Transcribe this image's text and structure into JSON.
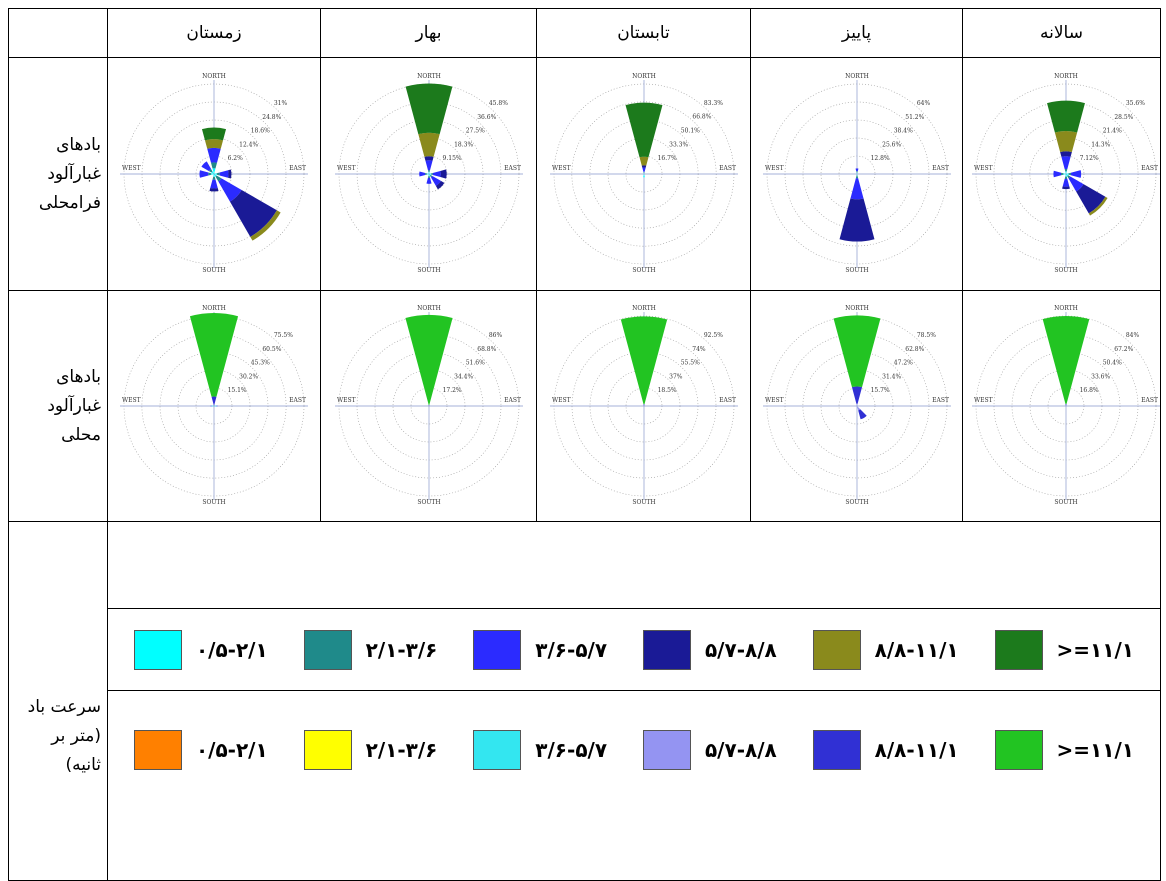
{
  "header": {
    "columns": [
      "زمستان",
      "بهار",
      "تابستان",
      "پاییز",
      "سالانه"
    ]
  },
  "directions": {
    "north": "NORTH",
    "south": "SOUTH",
    "east": "EAST",
    "west": "WEST"
  },
  "rows": [
    {
      "label": "بادهای غبارآلود فرامحلی",
      "roses": [
        {
          "rings": [
            {
              "value": 6.2,
              "label": "6.2%"
            },
            {
              "value": 12.4,
              "label": "12.4%"
            },
            {
              "value": 18.6,
              "label": "18.6%"
            },
            {
              "value": 24.8,
              "label": "24.8%"
            },
            {
              "value": 31,
              "label": "31%"
            }
          ],
          "petals": [
            {
              "direction": 0,
              "segments": [
                2,
                2,
                5,
                0,
                3,
                4
              ]
            },
            {
              "direction": 135,
              "segments": [
                1,
                2,
                8,
                14,
                1.5,
                0
              ]
            },
            {
              "direction": 90,
              "segments": [
                1,
                1,
                3,
                1,
                0,
                0
              ]
            },
            {
              "direction": 180,
              "segments": [
                1,
                1,
                3,
                1,
                0,
                0
              ]
            },
            {
              "direction": 270,
              "segments": [
                1,
                1,
                3,
                0,
                0,
                0
              ]
            },
            {
              "direction": 315,
              "segments": [
                1,
                1,
                3,
                0,
                0,
                0
              ]
            }
          ]
        },
        {
          "rings": [
            {
              "value": 9.15,
              "label": "9.15%"
            },
            {
              "value": 18.3,
              "label": "18.3%"
            },
            {
              "value": 27.5,
              "label": "27.5%"
            },
            {
              "value": 36.6,
              "label": "36.6%"
            },
            {
              "value": 45.8,
              "label": "45.8%"
            }
          ],
          "petals": [
            {
              "direction": 0,
              "segments": [
                1,
                1,
                5,
                2,
                12,
                25
              ]
            },
            {
              "direction": 90,
              "segments": [
                1,
                1,
                4,
                3,
                0,
                0
              ]
            },
            {
              "direction": 135,
              "segments": [
                1,
                1,
                5,
                2,
                0,
                0
              ]
            },
            {
              "direction": 180,
              "segments": [
                1,
                1,
                3,
                0,
                0,
                0
              ]
            },
            {
              "direction": 270,
              "segments": [
                1,
                1,
                3,
                0,
                0,
                0
              ]
            }
          ]
        },
        {
          "rings": [
            {
              "value": 16.7,
              "label": "16.7%"
            },
            {
              "value": 33.3,
              "label": "33.3%"
            },
            {
              "value": 50.1,
              "label": "50.1%"
            },
            {
              "value": 66.8,
              "label": "66.8%"
            },
            {
              "value": 83.3,
              "label": "83.3%"
            }
          ],
          "petals": [
            {
              "direction": 0,
              "segments": [
                1,
                1,
                4,
                2,
                8,
                50
              ]
            },
            {
              "direction": 180,
              "segments": [
                3,
                0,
                0,
                0,
                0,
                0
              ]
            }
          ]
        },
        {
          "rings": [
            {
              "value": 12.8,
              "label": "12.8%"
            },
            {
              "value": 25.6,
              "label": "25.6%"
            },
            {
              "value": 38.4,
              "label": "38.4%"
            },
            {
              "value": 51.2,
              "label": "51.2%"
            },
            {
              "value": 64,
              "label": "64%"
            }
          ],
          "petals": [
            {
              "direction": 180,
              "segments": [
                1,
                2,
                15,
                30,
                0,
                0
              ]
            },
            {
              "direction": 0,
              "segments": [
                1,
                1,
                2,
                0,
                0,
                0
              ]
            }
          ]
        },
        {
          "rings": [
            {
              "value": 7.12,
              "label": "7.12%"
            },
            {
              "value": 14.3,
              "label": "14.3%"
            },
            {
              "value": 21.4,
              "label": "21.4%"
            },
            {
              "value": 28.5,
              "label": "28.5%"
            },
            {
              "value": 35.6,
              "label": "35.6%"
            }
          ],
          "petals": [
            {
              "direction": 0,
              "segments": [
                1,
                1,
                5,
                2,
                8,
                12
              ]
            },
            {
              "direction": 135,
              "segments": [
                1,
                1,
                6,
                10,
                1,
                0
              ]
            },
            {
              "direction": 90,
              "segments": [
                1,
                1,
                4,
                0,
                0,
                0
              ]
            },
            {
              "direction": 270,
              "segments": [
                1,
                1,
                3,
                0,
                0,
                0
              ]
            },
            {
              "direction": 180,
              "segments": [
                1,
                1,
                3,
                1,
                0,
                0
              ]
            }
          ]
        }
      ]
    },
    {
      "label": "بادهای غبارآلود محلی",
      "roses": [
        {
          "rings": [
            {
              "value": 15.1,
              "label": "15.1%"
            },
            {
              "value": 30.2,
              "label": "30.2%"
            },
            {
              "value": 45.3,
              "label": "45.3%"
            },
            {
              "value": 60.5,
              "label": "60.5%"
            },
            {
              "value": 75.5,
              "label": "75.5%"
            }
          ],
          "petals": [
            {
              "direction": 0,
              "segments": [
                0,
                0,
                0,
                0,
                8,
                70
              ]
            },
            {
              "direction": 90,
              "segments": [
                0,
                0,
                2,
                1,
                0,
                0
              ]
            },
            {
              "direction": 270,
              "segments": [
                0,
                0,
                2,
                1,
                0,
                0
              ]
            }
          ]
        },
        {
          "rings": [
            {
              "value": 17.2,
              "label": "17.2%"
            },
            {
              "value": 34.4,
              "label": "34.4%"
            },
            {
              "value": 51.6,
              "label": "51.6%"
            },
            {
              "value": 68.8,
              "label": "68.8%"
            },
            {
              "value": 86,
              "label": "86%"
            }
          ],
          "petals": [
            {
              "direction": 0,
              "segments": [
                0,
                0,
                0,
                0,
                1,
                86
              ]
            }
          ]
        },
        {
          "rings": [
            {
              "value": 18.5,
              "label": "18.5%"
            },
            {
              "value": 37,
              "label": "37%"
            },
            {
              "value": 55.5,
              "label": "55.5%"
            },
            {
              "value": 74,
              "label": "74%"
            },
            {
              "value": 92.5,
              "label": "92.5%"
            }
          ],
          "petals": [
            {
              "direction": 0,
              "segments": [
                0,
                0,
                0,
                0,
                2,
                90
              ]
            }
          ]
        },
        {
          "rings": [
            {
              "value": 15.7,
              "label": "15.7%"
            },
            {
              "value": 31.4,
              "label": "31.4%"
            },
            {
              "value": 47.2,
              "label": "47.2%"
            },
            {
              "value": 62.8,
              "label": "62.8%"
            },
            {
              "value": 78.5,
              "label": "78.5%"
            }
          ],
          "petals": [
            {
              "direction": 0,
              "segments": [
                0,
                0,
                0,
                2,
                15,
                62
              ]
            },
            {
              "direction": 150,
              "segments": [
                0,
                0,
                0,
                4,
                8,
                0
              ]
            }
          ]
        },
        {
          "rings": [
            {
              "value": 16.8,
              "label": "16.8%"
            },
            {
              "value": 33.6,
              "label": "33.6%"
            },
            {
              "value": 50.4,
              "label": "50.4%"
            },
            {
              "value": 67.2,
              "label": "67.2%"
            },
            {
              "value": 84,
              "label": "84%"
            }
          ],
          "petals": [
            {
              "direction": 0,
              "segments": [
                0,
                0,
                0,
                0,
                2,
                82
              ]
            }
          ]
        }
      ]
    }
  ],
  "legend": {
    "label": "سرعت باد (متر بر ثانیه)",
    "rows": [
      [
        {
          "label": "۰/۵-۲/۱",
          "color": "#00ffff"
        },
        {
          "label": "۲/۱-۳/۶",
          "color": "#1f8a8a"
        },
        {
          "label": "۳/۶-۵/۷",
          "color": "#2b2bff"
        },
        {
          "label": "۵/۷-۸/۸",
          "color": "#1a1a96"
        },
        {
          "label": "۸/۸-۱۱/۱",
          "color": "#8a8a1c"
        },
        {
          "label": ">=۱۱/۱",
          "color": "#1c7a1c"
        }
      ],
      [
        {
          "label": "۰/۵-۲/۱",
          "color": "#ff8000"
        },
        {
          "label": "۲/۱-۳/۶",
          "color": "#ffff00"
        },
        {
          "label": "۳/۶-۵/۷",
          "color": "#33e6f0"
        },
        {
          "label": "۵/۷-۸/۸",
          "color": "#9494f2"
        },
        {
          "label": "۸/۸-۱۱/۱",
          "color": "#3030d4"
        },
        {
          "label": ">=۱۱/۱",
          "color": "#22c422"
        }
      ]
    ]
  }
}
